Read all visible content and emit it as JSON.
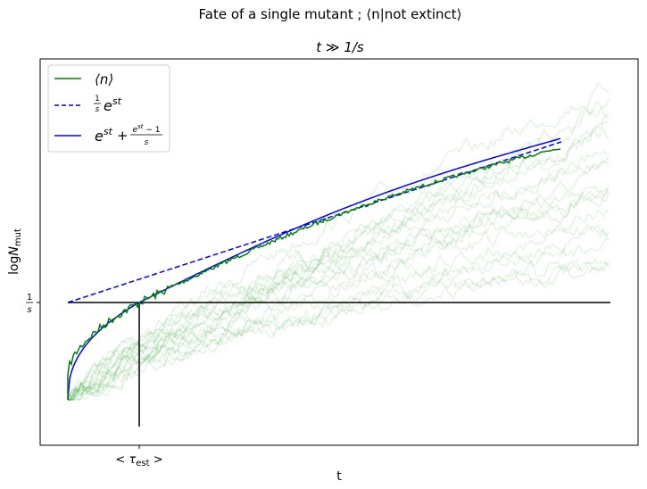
{
  "chart_data": {
    "type": "line",
    "title": "Fate of a single mutant ; ⟨n|not extinct⟩",
    "subtitle": "t ≫ 1/s",
    "xlabel": "t",
    "ylabel": "log N_mut",
    "yscale": "log",
    "grid": false,
    "legend_position": "top-left",
    "x_tick_labels": [
      "< τ_est >"
    ],
    "y_tick_labels": [
      "1/s"
    ],
    "series": [
      {
        "name": "⟨n⟩",
        "color": "#008000",
        "style": "solid"
      },
      {
        "name": "(1/s) e^{st}",
        "color": "#0000ff",
        "style": "dashed"
      },
      {
        "name": "e^{st} + (e^{st} − 1)/s",
        "color": "#0000ff",
        "style": "solid"
      }
    ],
    "faint_trajectories": {
      "color": "#2ca02c",
      "count": 20
    }
  }
}
